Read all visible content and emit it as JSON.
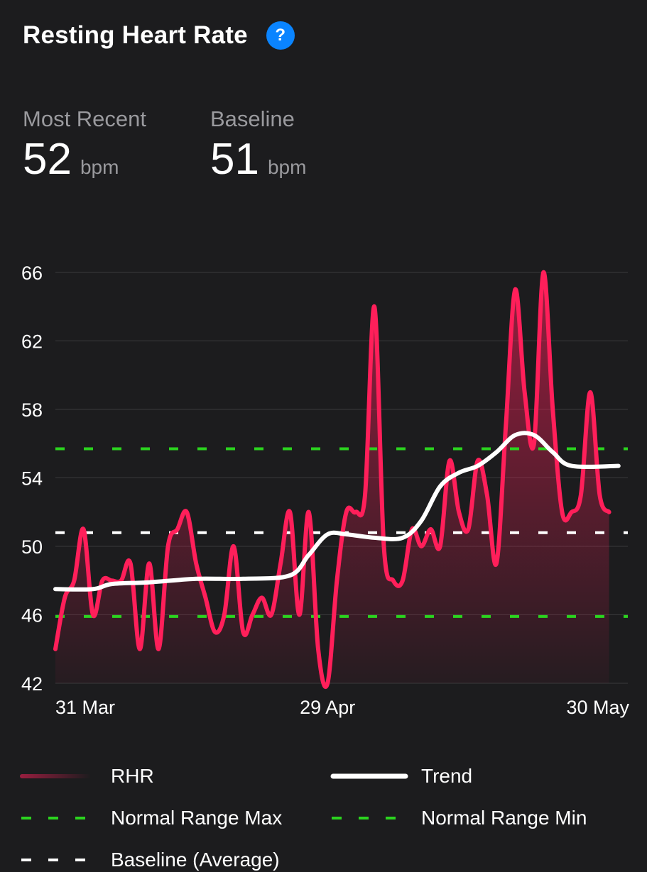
{
  "header": {
    "title": "Resting Heart Rate",
    "help_glyph": "?"
  },
  "stats": {
    "most_recent": {
      "label": "Most Recent",
      "value": "52",
      "unit": "bpm"
    },
    "baseline": {
      "label": "Baseline",
      "value": "51",
      "unit": "bpm"
    }
  },
  "legend": {
    "rhr": "RHR",
    "trend": "Trend",
    "range_max": "Normal Range Max",
    "range_min": "Normal Range Min",
    "baseline": "Baseline (Average)"
  },
  "colors": {
    "rhr": "#ff1f5a",
    "trend": "#ffffff",
    "normal_range": "#2bd41f",
    "baseline": "#ffffff",
    "help": "#0a84ff"
  },
  "chart_data": {
    "type": "line",
    "ylim": [
      42,
      66
    ],
    "y_ticks": [
      66,
      62,
      58,
      54,
      50,
      46,
      42
    ],
    "x_ticks": [
      {
        "label": "31 Mar",
        "day": 0
      },
      {
        "label": "29 Apr",
        "day": 29
      },
      {
        "label": "30 May",
        "day": 60
      }
    ],
    "x_range_days": [
      0,
      61
    ],
    "reference_lines": {
      "normal_range_max": 55.7,
      "normal_range_min": 45.9,
      "baseline": 50.8
    },
    "series": [
      {
        "name": "RHR",
        "points": [
          [
            0,
            44
          ],
          [
            1,
            47
          ],
          [
            2,
            48
          ],
          [
            3,
            51
          ],
          [
            4,
            46
          ],
          [
            5,
            48
          ],
          [
            6,
            48
          ],
          [
            7,
            48
          ],
          [
            8,
            49
          ],
          [
            9,
            44
          ],
          [
            10,
            49
          ],
          [
            11,
            44
          ],
          [
            12,
            50
          ],
          [
            13,
            51
          ],
          [
            14,
            52
          ],
          [
            15,
            49
          ],
          [
            16,
            47
          ],
          [
            17,
            45
          ],
          [
            18,
            46
          ],
          [
            19,
            50
          ],
          [
            20,
            45
          ],
          [
            21,
            46
          ],
          [
            22,
            47
          ],
          [
            23,
            46
          ],
          [
            24,
            49
          ],
          [
            25,
            52
          ],
          [
            26,
            46
          ],
          [
            27,
            52
          ],
          [
            28,
            44
          ],
          [
            29,
            42
          ],
          [
            30,
            48
          ],
          [
            31,
            52
          ],
          [
            32,
            52
          ],
          [
            33,
            53
          ],
          [
            34,
            64
          ],
          [
            35,
            50
          ],
          [
            36,
            48
          ],
          [
            37,
            48
          ],
          [
            38,
            51
          ],
          [
            39,
            50
          ],
          [
            40,
            51
          ],
          [
            41,
            50
          ],
          [
            42,
            55
          ],
          [
            43,
            52
          ],
          [
            44,
            51
          ],
          [
            45,
            55
          ],
          [
            46,
            53
          ],
          [
            47,
            49
          ],
          [
            48,
            57
          ],
          [
            49,
            65
          ],
          [
            50,
            59
          ],
          [
            51,
            56
          ],
          [
            52,
            66
          ],
          [
            53,
            58
          ],
          [
            54,
            52
          ],
          [
            55,
            52
          ],
          [
            56,
            53
          ],
          [
            57,
            59
          ],
          [
            58,
            53
          ],
          [
            59,
            52
          ]
        ]
      },
      {
        "name": "Trend",
        "points": [
          [
            0,
            47.5
          ],
          [
            4,
            47.5
          ],
          [
            6,
            47.8
          ],
          [
            10,
            47.9
          ],
          [
            15,
            48.1
          ],
          [
            20,
            48.1
          ],
          [
            25,
            48.3
          ],
          [
            27,
            49.5
          ],
          [
            29,
            50.7
          ],
          [
            31,
            50.7
          ],
          [
            34,
            50.5
          ],
          [
            37,
            50.5
          ],
          [
            39,
            51.5
          ],
          [
            41,
            53.5
          ],
          [
            43,
            54.3
          ],
          [
            45,
            54.7
          ],
          [
            47,
            55.5
          ],
          [
            49,
            56.5
          ],
          [
            51,
            56.5
          ],
          [
            53,
            55.5
          ],
          [
            55,
            54.7
          ],
          [
            60,
            54.7
          ]
        ]
      }
    ]
  }
}
